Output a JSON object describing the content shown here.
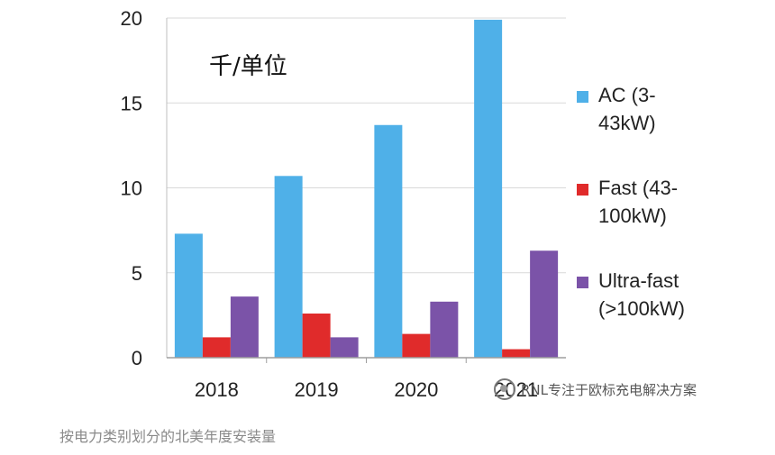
{
  "chart_data": {
    "type": "bar",
    "categories": [
      "2018",
      "2019",
      "2020",
      "2021"
    ],
    "series": [
      {
        "name": "AC (3-43kW)",
        "legend_lines": [
          "AC (3-",
          "43kW)"
        ],
        "color": "#4fb0e8",
        "values": [
          7.3,
          10.7,
          13.7,
          19.9
        ]
      },
      {
        "name": "Fast (43-100kW)",
        "legend_lines": [
          "Fast (43-",
          "100kW)"
        ],
        "color": "#e02b2b",
        "values": [
          1.2,
          2.6,
          1.4,
          0.5
        ]
      },
      {
        "name": "Ultra-fast (>100kW)",
        "legend_lines": [
          "Ultra-fast",
          "(>100kW)"
        ],
        "color": "#7b53a8",
        "values": [
          3.6,
          1.2,
          3.3,
          6.3
        ]
      }
    ],
    "ylim": [
      0,
      20
    ],
    "yticks": [
      0,
      5,
      10,
      15,
      20
    ],
    "unit_label": "千/单位",
    "grid": true,
    "legend_position": "right"
  },
  "watermark": "RNL专注于欧标充电解决方案",
  "watermark_icon": "wechat-icon",
  "caption": "按电力类别划分的北美年度安装量"
}
